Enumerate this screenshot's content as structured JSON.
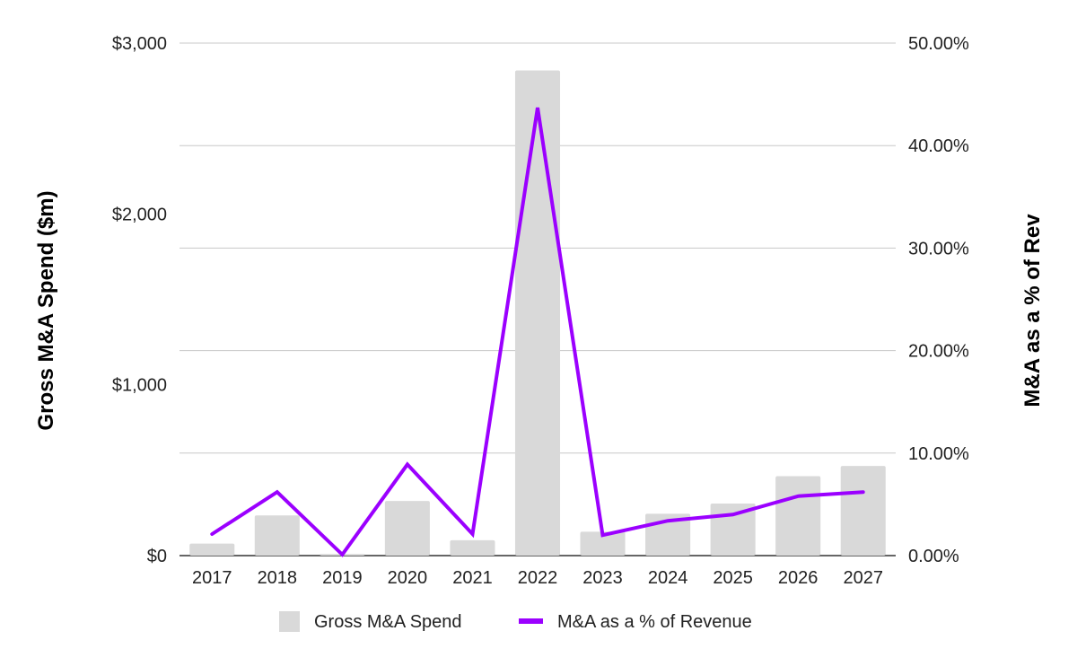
{
  "chart_data": {
    "type": "bar",
    "categories": [
      "2017",
      "2018",
      "2019",
      "2020",
      "2021",
      "2022",
      "2023",
      "2024",
      "2025",
      "2026",
      "2027"
    ],
    "series": [
      {
        "name": "Gross M&A Spend",
        "type": "bar",
        "axis": "left",
        "color": "#d9d9d9",
        "values": [
          70,
          235,
          10,
          320,
          90,
          2840,
          140,
          245,
          305,
          465,
          525
        ]
      },
      {
        "name": "M&A as a % of Revenue",
        "type": "line",
        "axis": "right",
        "color": "#9b00ff",
        "values": [
          2.1,
          6.2,
          0.1,
          8.9,
          2.1,
          43.7,
          2.0,
          3.4,
          4.0,
          5.8,
          6.2
        ]
      }
    ],
    "ylabel": "Gross M&A Spend ($m)",
    "y2label": "M&A as a % of Rev",
    "ylim": [
      0,
      3000
    ],
    "y2lim": [
      0,
      50
    ],
    "yticks": [
      "$0",
      "$1,000",
      "$2,000",
      "$3,000"
    ],
    "y2ticks": [
      "0.00%",
      "10.00%",
      "20.00%",
      "30.00%",
      "40.00%",
      "50.00%"
    ],
    "grid": true,
    "legend_position": "bottom"
  }
}
